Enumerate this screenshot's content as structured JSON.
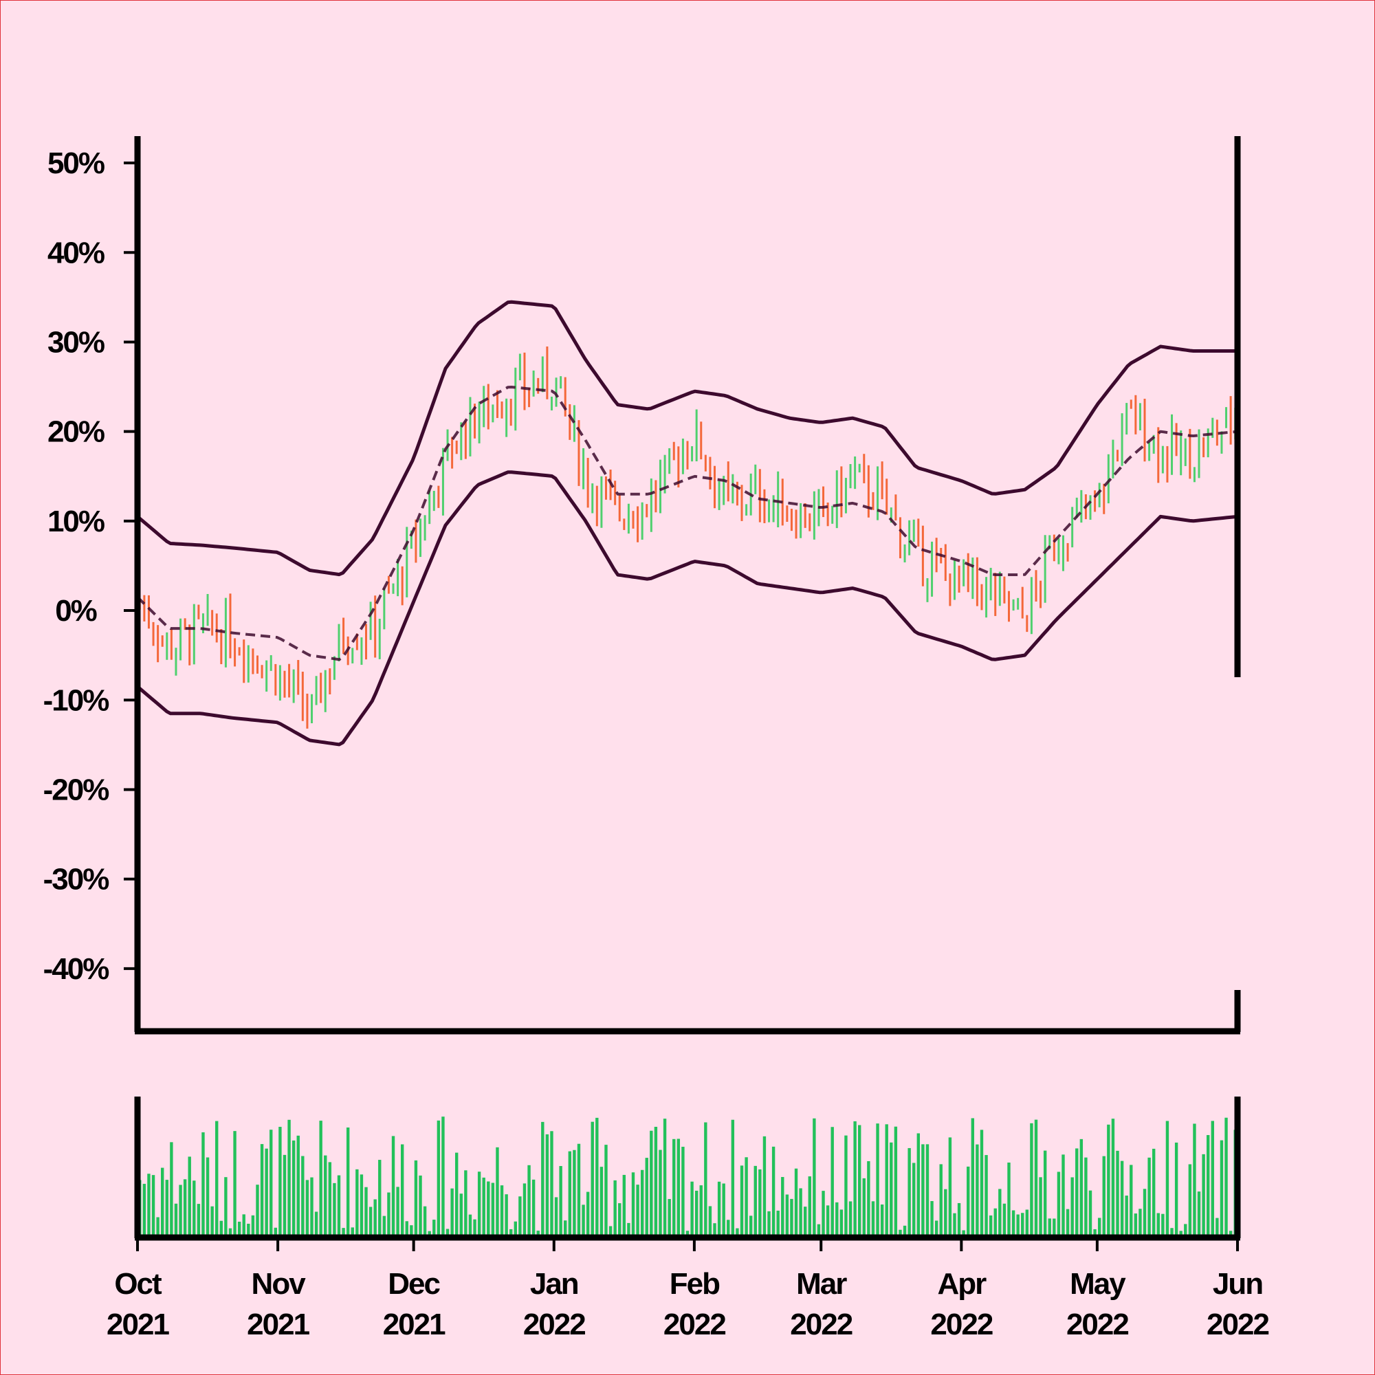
{
  "chart_data": {
    "type": "ohlc",
    "y_axis": {
      "ticks": [
        50,
        40,
        30,
        20,
        10,
        0,
        -10,
        -20,
        -30,
        -40
      ],
      "tick_labels": [
        "50%",
        "40%",
        "30%",
        "20%",
        "10%",
        "0%",
        "-10%",
        "-20%",
        "-30%",
        "-40%"
      ],
      "ylim": [
        -47,
        53
      ],
      "unit": "%"
    },
    "x_axis": {
      "range": [
        "2021-10-01",
        "2022-06-01"
      ],
      "ticks": [
        {
          "date": "2021-10-01",
          "month": "Oct",
          "year": "2021"
        },
        {
          "date": "2021-11-01",
          "month": "Nov",
          "year": "2021"
        },
        {
          "date": "2021-12-01",
          "month": "Dec",
          "year": "2021"
        },
        {
          "date": "2022-01-01",
          "month": "Jan",
          "year": "2022"
        },
        {
          "date": "2022-02-01",
          "month": "Feb",
          "year": "2022"
        },
        {
          "date": "2022-03-01",
          "month": "Mar",
          "year": "2022"
        },
        {
          "date": "2022-04-01",
          "month": "Apr",
          "year": "2022"
        },
        {
          "date": "2022-05-01",
          "month": "May",
          "year": "2022"
        },
        {
          "date": "2022-06-01",
          "month": "Jun",
          "year": "2022"
        }
      ]
    },
    "price_anchors": {
      "description_dates": [
        "2021-10-01",
        "2021-10-08",
        "2021-10-15",
        "2021-10-22",
        "2021-11-01",
        "2021-11-08",
        "2021-11-15",
        "2021-11-22",
        "2021-12-01",
        "2021-12-08",
        "2021-12-15",
        "2021-12-22",
        "2022-01-01",
        "2022-01-08",
        "2022-01-15",
        "2022-01-22",
        "2022-02-01",
        "2022-02-08",
        "2022-02-15",
        "2022-02-22",
        "2022-03-01",
        "2022-03-08",
        "2022-03-15",
        "2022-03-22",
        "2022-04-01",
        "2022-04-08",
        "2022-04-15",
        "2022-04-22",
        "2022-05-01",
        "2022-05-08",
        "2022-05-15",
        "2022-05-22",
        "2022-06-01"
      ],
      "close": [
        1,
        -4,
        -2,
        -3,
        -7,
        -12,
        -3,
        -2,
        7,
        17,
        22,
        24,
        26,
        15,
        11,
        12,
        20,
        12,
        13,
        11,
        10,
        15,
        12,
        6,
        3,
        2,
        -1,
        8,
        12,
        22,
        18,
        17,
        22
      ]
    },
    "bands": {
      "middle_dates": [
        "2021-10-01",
        "2021-10-08",
        "2021-10-15",
        "2021-10-22",
        "2021-11-01",
        "2021-11-08",
        "2021-11-15",
        "2021-11-22",
        "2021-12-01",
        "2021-12-08",
        "2021-12-15",
        "2021-12-22",
        "2022-01-01",
        "2022-01-08",
        "2022-01-15",
        "2022-01-22",
        "2022-02-01",
        "2022-02-08",
        "2022-02-15",
        "2022-02-22",
        "2022-03-01",
        "2022-03-08",
        "2022-03-15",
        "2022-03-22",
        "2022-04-01",
        "2022-04-08",
        "2022-04-15",
        "2022-04-22",
        "2022-05-01",
        "2022-05-08",
        "2022-05-15",
        "2022-05-22",
        "2022-06-01"
      ],
      "middle": [
        1.5,
        -2,
        -2,
        -2.5,
        -3,
        -5,
        -5.5,
        0,
        9,
        18,
        23,
        25,
        24.5,
        19,
        13,
        13,
        15,
        14.5,
        12.5,
        12,
        11.5,
        12,
        11,
        7,
        5.5,
        4,
        4,
        8,
        13,
        17,
        20,
        19.5,
        20
      ],
      "upper": [
        10.5,
        7.5,
        7.3,
        7,
        6.5,
        4.5,
        4,
        8,
        17,
        27,
        32,
        34.5,
        34,
        28,
        23,
        22.5,
        24.5,
        24,
        22.5,
        21.5,
        21,
        21.5,
        20.5,
        16,
        14.5,
        13,
        13.5,
        16,
        23,
        27.5,
        29.5,
        29,
        29
      ],
      "lower": [
        -8.5,
        -11.5,
        -11.5,
        -12,
        -12.5,
        -14.5,
        -15,
        -10,
        1,
        9.5,
        14,
        15.5,
        15,
        10,
        4,
        3.5,
        5.5,
        5,
        3,
        2.5,
        2,
        2.5,
        1.5,
        -2.5,
        -4,
        -5.5,
        -5,
        -1,
        3.5,
        7,
        10.5,
        10,
        10.5
      ],
      "line_color": "#3d0a2e",
      "middle_style": "dashed"
    },
    "colors": {
      "up": "#4fd06e",
      "down": "#f4683a",
      "volume": "#22c15a",
      "background": "#ffe0ec",
      "axis": "#000000"
    },
    "volume": {
      "shown": true,
      "tick_labels": false
    },
    "grid": false,
    "legend": "none"
  }
}
